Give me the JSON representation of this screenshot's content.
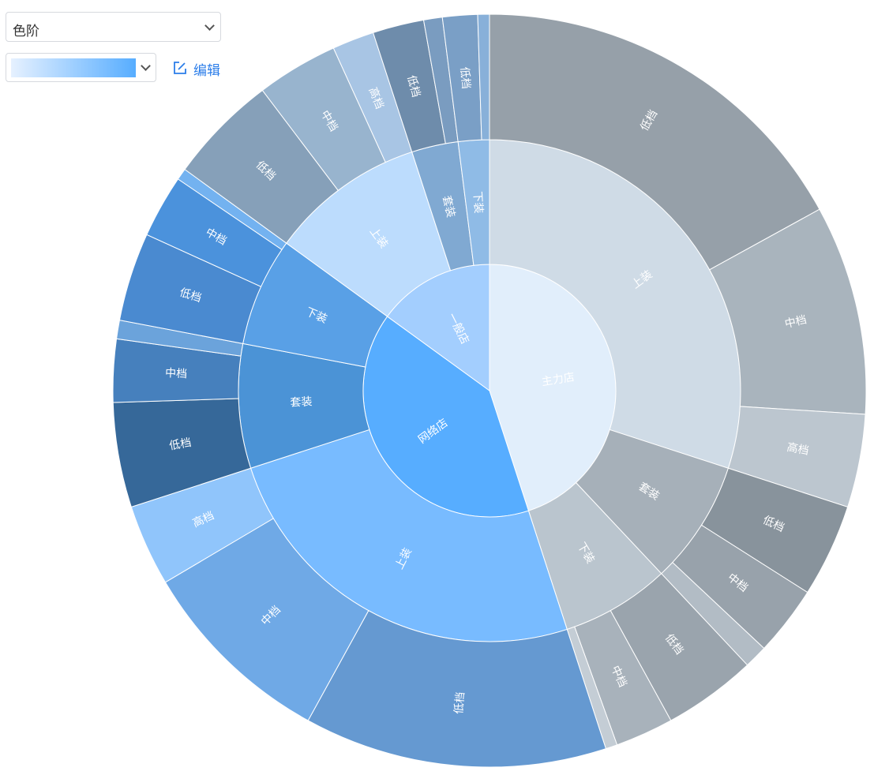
{
  "controls": {
    "select_label": "色阶",
    "edit_label": "编辑",
    "ramp_colors": [
      "#e6f1ff",
      "#57adff"
    ],
    "chevron_icon": "chevron-down-icon",
    "edit_icon": "edit-icon"
  },
  "chart_data": {
    "type": "sunburst",
    "label_color": "#ffffff",
    "nodes": [
      {
        "name": "主力店",
        "value": 45,
        "color": "#e1eefb",
        "children": [
          {
            "name": "上装",
            "value": 30,
            "color": "#cfdbe6",
            "children": [
              {
                "name": "低档",
                "value": 17,
                "color": "#96a0a9"
              },
              {
                "name": "中档",
                "value": 9,
                "color": "#a9b4bd"
              },
              {
                "name": "高档",
                "value": 4,
                "color": "#bcc6cf"
              }
            ]
          },
          {
            "name": "套装",
            "value": 8,
            "color": "#a6b0b9",
            "children": [
              {
                "name": "低档",
                "value": 4,
                "color": "#88939c"
              },
              {
                "name": "中档",
                "value": 3,
                "color": "#98a2ab"
              },
              {
                "name": "",
                "value": 1,
                "color": "#b2bcc5"
              }
            ]
          },
          {
            "name": "下装",
            "value": 7,
            "color": "#bac5ce",
            "children": [
              {
                "name": "低档",
                "value": 4,
                "color": "#9aa4ad"
              },
              {
                "name": "中档",
                "value": 2.5,
                "color": "#a8b2bb"
              },
              {
                "name": "",
                "value": 0.5,
                "color": "#c4cdd5"
              }
            ]
          }
        ]
      },
      {
        "name": "网络店",
        "value": 40,
        "color": "#57adff",
        "children": [
          {
            "name": "上装",
            "value": 25,
            "color": "#78bbff",
            "children": [
              {
                "name": "低档",
                "value": 13,
                "color": "#6599d1"
              },
              {
                "name": "中档",
                "value": 8.5,
                "color": "#6fa9e6"
              },
              {
                "name": "高档",
                "value": 3.5,
                "color": "#90c5fb"
              }
            ]
          },
          {
            "name": "套装",
            "value": 8,
            "color": "#4b93d6",
            "children": [
              {
                "name": "低档",
                "value": 4.5,
                "color": "#366899"
              },
              {
                "name": "中档",
                "value": 2.7,
                "color": "#4680bd"
              },
              {
                "name": "",
                "value": 0.8,
                "color": "#6ba3db"
              }
            ]
          },
          {
            "name": "下装",
            "value": 7,
            "color": "#59a0e6",
            "children": [
              {
                "name": "低档",
                "value": 3.8,
                "color": "#4a8ad0"
              },
              {
                "name": "中档",
                "value": 2.7,
                "color": "#4b92dc"
              },
              {
                "name": "",
                "value": 0.5,
                "color": "#73b2f0"
              }
            ]
          }
        ]
      },
      {
        "name": "一般店",
        "value": 15,
        "color": "#a3cefe",
        "children": [
          {
            "name": "上装",
            "value": 10,
            "color": "#bcdcfd",
            "children": [
              {
                "name": "低档",
                "value": 4.7,
                "color": "#86a0b9"
              },
              {
                "name": "中档",
                "value": 3.5,
                "color": "#98b4ce"
              },
              {
                "name": "高档",
                "value": 1.8,
                "color": "#a8c5e4"
              }
            ]
          },
          {
            "name": "套装",
            "value": 3,
            "color": "#80a9d2",
            "children": [
              {
                "name": "低档",
                "value": 2.2,
                "color": "#6e8cab"
              },
              {
                "name": "",
                "value": 0.8,
                "color": "#7a9cc0"
              }
            ]
          },
          {
            "name": "下装",
            "value": 2,
            "color": "#8fbbe6",
            "children": [
              {
                "name": "低档",
                "value": 1.5,
                "color": "#7a9fc6"
              },
              {
                "name": "",
                "value": 0.5,
                "color": "#88b0d9"
              }
            ]
          }
        ]
      }
    ]
  }
}
